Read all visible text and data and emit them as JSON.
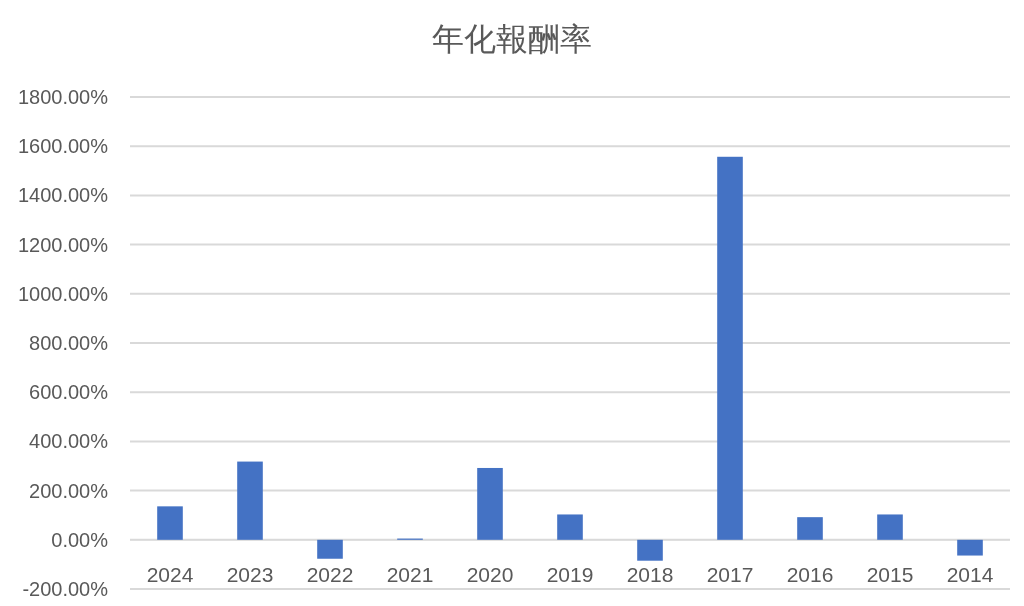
{
  "chart_data": {
    "type": "bar",
    "title": "年化報酬率",
    "categories": [
      "2024",
      "2023",
      "2022",
      "2021",
      "2020",
      "2019",
      "2018",
      "2017",
      "2016",
      "2015",
      "2014"
    ],
    "values": [
      136,
      318,
      -77,
      5,
      292,
      103,
      -85,
      1557,
      92,
      103,
      -64
    ],
    "color": "#4472c4",
    "ylim": [
      -200,
      1800
    ],
    "yticks": [
      {
        "value": -200,
        "label": "-200.00%"
      },
      {
        "value": 0,
        "label": "0.00%"
      },
      {
        "value": 200,
        "label": "200.00%"
      },
      {
        "value": 400,
        "label": "400.00%"
      },
      {
        "value": 600,
        "label": "600.00%"
      },
      {
        "value": 800,
        "label": "800.00%"
      },
      {
        "value": 1000,
        "label": "1000.00%"
      },
      {
        "value": 1200,
        "label": "1200.00%"
      },
      {
        "value": 1400,
        "label": "1400.00%"
      },
      {
        "value": 1600,
        "label": "1600.00%"
      },
      {
        "value": 1800,
        "label": "1800.00%"
      }
    ],
    "grid": "y"
  }
}
